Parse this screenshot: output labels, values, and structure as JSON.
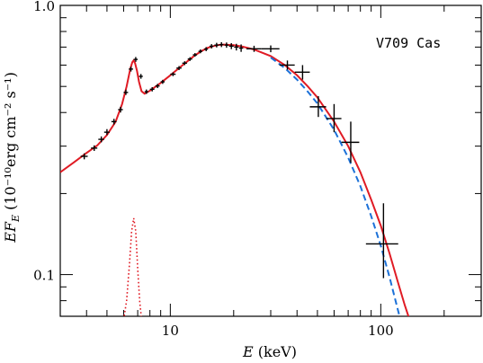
{
  "chart_data": {
    "type": "scatter",
    "annotation": "V709 Cas",
    "xlabel": {
      "italic": "E",
      "rest": " (keV)"
    },
    "ylabel": {
      "italic": "EF",
      "sub": "E",
      "rest": " (10⁻¹⁰erg cm⁻² s⁻¹)"
    },
    "xscale": "log",
    "yscale": "log",
    "xlim": [
      3,
      300
    ],
    "ylim": [
      0.07,
      1.0
    ],
    "xticks": [
      {
        "value": 10,
        "label": "10"
      },
      {
        "value": 100,
        "label": "100"
      }
    ],
    "yticks": [
      {
        "value": 0.1,
        "label": "0.1"
      },
      {
        "value": 1.0,
        "label": "1.0"
      }
    ],
    "series": [
      {
        "kind": "errorbar",
        "color": "#000000",
        "points": [
          {
            "x": 3.9,
            "y": 0.275,
            "xlo": 3.75,
            "xhi": 4.05,
            "ylo": 0.268,
            "yhi": 0.282
          },
          {
            "x": 4.35,
            "y": 0.295,
            "xlo": 4.2,
            "xhi": 4.5,
            "ylo": 0.288,
            "yhi": 0.302
          },
          {
            "x": 4.7,
            "y": 0.318,
            "xlo": 4.55,
            "xhi": 4.85,
            "ylo": 0.31,
            "yhi": 0.326
          },
          {
            "x": 5.0,
            "y": 0.338,
            "xlo": 4.85,
            "xhi": 5.15,
            "ylo": 0.33,
            "yhi": 0.347
          },
          {
            "x": 5.4,
            "y": 0.37,
            "xlo": 5.25,
            "xhi": 5.55,
            "ylo": 0.361,
            "yhi": 0.379
          },
          {
            "x": 5.8,
            "y": 0.41,
            "xlo": 5.65,
            "xhi": 5.95,
            "ylo": 0.4,
            "yhi": 0.42
          },
          {
            "x": 6.15,
            "y": 0.475,
            "xlo": 6.0,
            "xhi": 6.3,
            "ylo": 0.465,
            "yhi": 0.486
          },
          {
            "x": 6.5,
            "y": 0.58,
            "xlo": 6.35,
            "xhi": 6.65,
            "ylo": 0.568,
            "yhi": 0.592
          },
          {
            "x": 6.85,
            "y": 0.63,
            "xlo": 6.7,
            "xhi": 7.0,
            "ylo": 0.617,
            "yhi": 0.643
          },
          {
            "x": 7.25,
            "y": 0.545,
            "xlo": 7.1,
            "xhi": 7.4,
            "ylo": 0.534,
            "yhi": 0.556
          },
          {
            "x": 7.7,
            "y": 0.478,
            "xlo": 7.55,
            "xhi": 7.85,
            "ylo": 0.469,
            "yhi": 0.487
          },
          {
            "x": 8.2,
            "y": 0.488,
            "xlo": 8.0,
            "xhi": 8.4,
            "ylo": 0.479,
            "yhi": 0.497
          },
          {
            "x": 8.7,
            "y": 0.502,
            "xlo": 8.5,
            "xhi": 8.9,
            "ylo": 0.493,
            "yhi": 0.511
          },
          {
            "x": 9.2,
            "y": 0.52,
            "xlo": 9.0,
            "xhi": 9.4,
            "ylo": 0.511,
            "yhi": 0.529
          },
          {
            "x": 10.3,
            "y": 0.555,
            "xlo": 10.0,
            "xhi": 10.6,
            "ylo": 0.546,
            "yhi": 0.564
          },
          {
            "x": 11.0,
            "y": 0.585,
            "xlo": 10.7,
            "xhi": 11.3,
            "ylo": 0.575,
            "yhi": 0.595
          },
          {
            "x": 11.7,
            "y": 0.61,
            "xlo": 11.4,
            "xhi": 12.0,
            "ylo": 0.6,
            "yhi": 0.62
          },
          {
            "x": 12.4,
            "y": 0.632,
            "xlo": 12.1,
            "xhi": 12.7,
            "ylo": 0.622,
            "yhi": 0.642
          },
          {
            "x": 13.1,
            "y": 0.655,
            "xlo": 12.8,
            "xhi": 13.4,
            "ylo": 0.645,
            "yhi": 0.665
          },
          {
            "x": 13.9,
            "y": 0.675,
            "xlo": 13.6,
            "xhi": 14.2,
            "ylo": 0.664,
            "yhi": 0.686
          },
          {
            "x": 14.8,
            "y": 0.688,
            "xlo": 14.5,
            "xhi": 15.1,
            "ylo": 0.676,
            "yhi": 0.7
          },
          {
            "x": 15.7,
            "y": 0.705,
            "xlo": 15.35,
            "xhi": 16.05,
            "ylo": 0.692,
            "yhi": 0.718
          },
          {
            "x": 16.6,
            "y": 0.712,
            "xlo": 16.2,
            "xhi": 17.0,
            "ylo": 0.698,
            "yhi": 0.726
          },
          {
            "x": 17.5,
            "y": 0.715,
            "xlo": 17.1,
            "xhi": 17.9,
            "ylo": 0.7,
            "yhi": 0.73
          },
          {
            "x": 18.5,
            "y": 0.712,
            "xlo": 18.1,
            "xhi": 18.9,
            "ylo": 0.696,
            "yhi": 0.728
          },
          {
            "x": 19.5,
            "y": 0.706,
            "xlo": 19.0,
            "xhi": 20.0,
            "ylo": 0.688,
            "yhi": 0.724
          },
          {
            "x": 20.6,
            "y": 0.7,
            "xlo": 20.1,
            "xhi": 21.1,
            "ylo": 0.68,
            "yhi": 0.72
          },
          {
            "x": 21.7,
            "y": 0.694,
            "xlo": 21.2,
            "xhi": 22.2,
            "ylo": 0.672,
            "yhi": 0.716
          },
          {
            "x": 25.0,
            "y": 0.69,
            "xlo": 23.0,
            "xhi": 27.0,
            "ylo": 0.672,
            "yhi": 0.708
          },
          {
            "x": 30.0,
            "y": 0.69,
            "xlo": 27.0,
            "xhi": 33.0,
            "ylo": 0.67,
            "yhi": 0.71
          },
          {
            "x": 36.0,
            "y": 0.6,
            "xlo": 33.0,
            "xhi": 39.0,
            "ylo": 0.577,
            "yhi": 0.624
          },
          {
            "x": 42.5,
            "y": 0.565,
            "xlo": 39.0,
            "xhi": 46.0,
            "ylo": 0.53,
            "yhi": 0.6
          },
          {
            "x": 50.5,
            "y": 0.42,
            "xlo": 46.0,
            "xhi": 55.0,
            "ylo": 0.385,
            "yhi": 0.46
          },
          {
            "x": 60.0,
            "y": 0.38,
            "xlo": 55.0,
            "xhi": 65.0,
            "ylo": 0.338,
            "yhi": 0.43
          },
          {
            "x": 72.0,
            "y": 0.31,
            "xlo": 65.0,
            "xhi": 79.0,
            "ylo": 0.26,
            "yhi": 0.37
          },
          {
            "x": 103.0,
            "y": 0.13,
            "xlo": 85.0,
            "xhi": 121.0,
            "ylo": 0.097,
            "yhi": 0.184
          }
        ]
      },
      {
        "kind": "line",
        "style": "solid",
        "color": "#e01b24",
        "points": [
          [
            3.0,
            0.24
          ],
          [
            3.5,
            0.262
          ],
          [
            4.0,
            0.283
          ],
          [
            4.5,
            0.302
          ],
          [
            5.0,
            0.33
          ],
          [
            5.5,
            0.37
          ],
          [
            5.9,
            0.43
          ],
          [
            6.2,
            0.5
          ],
          [
            6.45,
            0.58
          ],
          [
            6.6,
            0.615
          ],
          [
            6.7,
            0.625
          ],
          [
            6.8,
            0.61
          ],
          [
            6.95,
            0.57
          ],
          [
            7.1,
            0.52
          ],
          [
            7.3,
            0.48
          ],
          [
            7.55,
            0.47
          ],
          [
            8.0,
            0.482
          ],
          [
            9.0,
            0.515
          ],
          [
            10.0,
            0.55
          ],
          [
            11.0,
            0.585
          ],
          [
            12.0,
            0.618
          ],
          [
            13.0,
            0.65
          ],
          [
            14.0,
            0.675
          ],
          [
            15.0,
            0.695
          ],
          [
            16.0,
            0.706
          ],
          [
            17.0,
            0.713
          ],
          [
            18.0,
            0.715
          ],
          [
            20.0,
            0.712
          ],
          [
            22.0,
            0.703
          ],
          [
            25.0,
            0.686
          ],
          [
            30.0,
            0.648
          ],
          [
            35.0,
            0.6
          ],
          [
            40.0,
            0.55
          ],
          [
            45.0,
            0.5
          ],
          [
            50.0,
            0.455
          ],
          [
            60.0,
            0.37
          ],
          [
            70.0,
            0.3
          ],
          [
            80.0,
            0.24
          ],
          [
            90.0,
            0.19
          ],
          [
            100.0,
            0.152
          ],
          [
            110.0,
            0.12
          ],
          [
            120.0,
            0.095
          ],
          [
            130.0,
            0.077
          ],
          [
            137.0,
            0.068
          ]
        ]
      },
      {
        "kind": "line",
        "style": "dashed",
        "color": "#1c71d8",
        "points": [
          [
            30.0,
            0.64
          ],
          [
            35.0,
            0.585
          ],
          [
            40.0,
            0.53
          ],
          [
            45.0,
            0.478
          ],
          [
            50.0,
            0.432
          ],
          [
            60.0,
            0.345
          ],
          [
            70.0,
            0.272
          ],
          [
            80.0,
            0.213
          ],
          [
            90.0,
            0.165
          ],
          [
            100.0,
            0.128
          ],
          [
            110.0,
            0.098
          ],
          [
            120.0,
            0.075
          ],
          [
            124.0,
            0.068
          ]
        ]
      },
      {
        "kind": "line",
        "style": "dotted",
        "color": "#e01b24",
        "points": [
          [
            6.0,
            0.068
          ],
          [
            6.2,
            0.08
          ],
          [
            6.4,
            0.11
          ],
          [
            6.55,
            0.145
          ],
          [
            6.7,
            0.162
          ],
          [
            6.85,
            0.145
          ],
          [
            7.0,
            0.105
          ],
          [
            7.15,
            0.08
          ],
          [
            7.3,
            0.068
          ]
        ]
      }
    ]
  }
}
